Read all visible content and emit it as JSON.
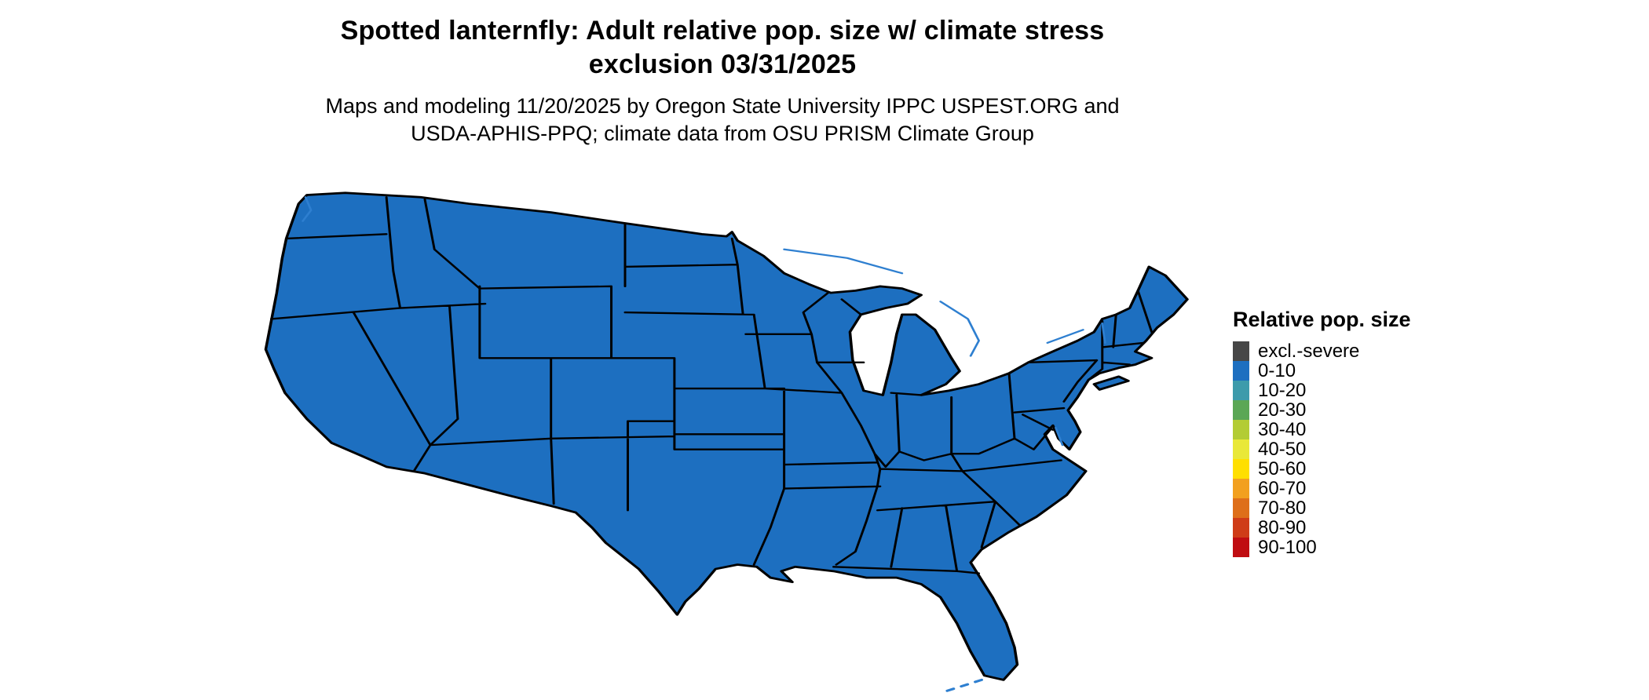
{
  "title": {
    "line1": "Spotted lanternfly: Adult relative pop. size w/ climate stress",
    "line2": "exclusion 03/31/2025"
  },
  "subtitle": {
    "line1": "Maps and modeling 11/20/2025 by Oregon State University IPPC USPEST.ORG and",
    "line2": "USDA-APHIS-PPQ; climate data from OSU PRISM Climate Group"
  },
  "legend": {
    "title": "Relative pop. size",
    "items": [
      {
        "label": "excl.-severe",
        "color": "#474747"
      },
      {
        "label": "0-10",
        "color": "#1d6fc0"
      },
      {
        "label": "10-20",
        "color": "#3d9bab"
      },
      {
        "label": "20-30",
        "color": "#5ba755"
      },
      {
        "label": "30-40",
        "color": "#b3cc34"
      },
      {
        "label": "40-50",
        "color": "#e9e838"
      },
      {
        "label": "50-60",
        "color": "#ffdf00"
      },
      {
        "label": "60-70",
        "color": "#f2a01f"
      },
      {
        "label": "70-80",
        "color": "#de6f1a"
      },
      {
        "label": "80-90",
        "color": "#cf3c18"
      },
      {
        "label": "90-100",
        "color": "#c00d12"
      }
    ]
  },
  "map": {
    "region": "Conterminous United States",
    "fill_category": "0-10",
    "fill": "#1d6fc0",
    "border": "#000000",
    "water": "#2e7fd0",
    "background": "#ffffff"
  },
  "chart_data": {
    "type": "choropleth-map",
    "title": "Spotted lanternfly: Adult relative pop. size w/ climate stress exclusion 03/31/2025",
    "variable": "Adult relative population size with climate stress exclusion",
    "date_shown": "03/31/2025",
    "categories": [
      "excl.-severe",
      "0-10",
      "10-20",
      "20-30",
      "30-40",
      "40-50",
      "50-60",
      "60-70",
      "70-80",
      "80-90",
      "90-100"
    ],
    "observation": "Entire conterminous US map is rendered in the 0-10 (blue) category",
    "legend_position": "right"
  }
}
